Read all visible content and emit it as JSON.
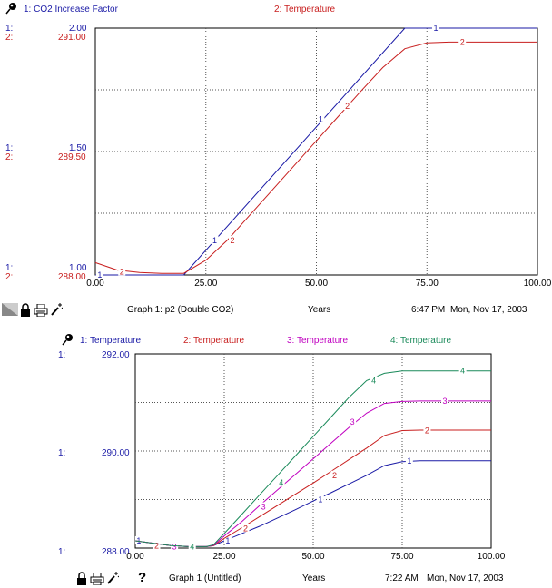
{
  "graph1": {
    "legend": [
      {
        "key": "1",
        "text": "1: CO2 Increase Factor",
        "color": "#1a1aa6"
      },
      {
        "key": "2",
        "text": "2: Temperature",
        "color": "#c81e1e"
      }
    ],
    "axis_rows": {
      "top": {
        "l1": "1:",
        "l2": "2:",
        "v1": "2.00",
        "v2": "291.00"
      },
      "mid": {
        "l1": "1:",
        "l2": "2:",
        "v1": "1.50",
        "v2": "289.50"
      },
      "bot": {
        "l1": "1:",
        "l2": "2:",
        "v1": "1.00",
        "v2": "288.00"
      }
    },
    "footer": {
      "title": "Graph 1: p2 (Double CO2)",
      "xunit": "Years",
      "time": "6:47 PM",
      "date": "Mon, Nov 17, 2003"
    }
  },
  "graph2": {
    "legend": [
      {
        "key": "1",
        "text": "1: Temperature",
        "color": "#1a1aa6"
      },
      {
        "key": "2",
        "text": "2: Temperature",
        "color": "#c81e1e"
      },
      {
        "key": "3",
        "text": "3: Temperature",
        "color": "#c000c0"
      },
      {
        "key": "4",
        "text": "4: Temperature",
        "color": "#1a8a5a"
      }
    ],
    "axis_rows": {
      "top": {
        "l1": "1:",
        "v1": "292.00"
      },
      "mid": {
        "l1": "1:",
        "v1": "290.00"
      },
      "bot": {
        "l1": "1:",
        "v1": "288.00"
      }
    },
    "footer": {
      "title": "Graph 1 (Untitled)",
      "xunit": "Years",
      "time": "7:22 AM",
      "date": "Mon, Nov 17, 2003",
      "help": "?"
    }
  },
  "icons": {
    "pin": "pushpin-icon",
    "lock": "lock-icon",
    "print": "printer-icon",
    "wand": "magic-wand-icon"
  },
  "chart_data": [
    {
      "type": "line",
      "x_ticks": [
        "0.00",
        "25.00",
        "50.00",
        "75.00",
        "100.00"
      ],
      "xlim": [
        0,
        100
      ],
      "series": [
        {
          "name": "CO2 Increase Factor",
          "key": "1",
          "color": "#1a1aa6",
          "axis": "left1",
          "ylim": [
            1.0,
            2.0
          ],
          "x": [
            0,
            20,
            70,
            100
          ],
          "y": [
            1.0,
            1.0,
            2.0,
            2.0
          ],
          "marks": [
            [
              1,
              1.0
            ],
            [
              27,
              1.14
            ],
            [
              51,
              1.63
            ],
            [
              77,
              2.0
            ]
          ]
        },
        {
          "name": "Temperature",
          "key": "2",
          "color": "#c81e1e",
          "axis": "left2",
          "ylim": [
            288.0,
            291.0
          ],
          "x": [
            0,
            5,
            10,
            15,
            20,
            25,
            30,
            35,
            40,
            45,
            50,
            55,
            60,
            65,
            70,
            75,
            80,
            85,
            90,
            95,
            100
          ],
          "y": [
            288.15,
            288.06,
            288.03,
            288.02,
            288.02,
            288.18,
            288.43,
            288.73,
            289.03,
            289.33,
            289.63,
            289.93,
            290.23,
            290.52,
            290.75,
            290.82,
            290.83,
            290.83,
            290.83,
            290.83,
            290.83
          ],
          "marks": [
            [
              6,
              288.04
            ],
            [
              31,
              288.42
            ],
            [
              57,
              290.05
            ],
            [
              83,
              290.83
            ]
          ]
        }
      ]
    },
    {
      "type": "line",
      "x_ticks": [
        "0.00",
        "25.00",
        "50.00",
        "75.00",
        "100.00"
      ],
      "xlim": [
        0,
        100
      ],
      "ylim": [
        288.0,
        292.0
      ],
      "series": [
        {
          "name": "Temperature",
          "key": "1",
          "color": "#1a1aa6",
          "x": [
            0,
            5,
            10,
            15,
            20,
            22,
            25,
            30,
            35,
            40,
            45,
            50,
            55,
            60,
            65,
            70,
            75,
            80,
            85,
            90,
            95,
            100
          ],
          "y": [
            288.15,
            288.1,
            288.05,
            288.03,
            288.03,
            288.05,
            288.15,
            288.3,
            288.45,
            288.62,
            288.79,
            288.97,
            289.14,
            289.32,
            289.5,
            289.7,
            289.78,
            289.8,
            289.8,
            289.8,
            289.8,
            289.8
          ],
          "marks": [
            [
              1,
              288.15
            ],
            [
              26,
              288.15
            ],
            [
              52,
              289.0
            ],
            [
              77,
              289.79
            ]
          ]
        },
        {
          "name": "Temperature",
          "key": "2",
          "color": "#c81e1e",
          "x": [
            0,
            5,
            10,
            15,
            20,
            22,
            25,
            30,
            35,
            40,
            45,
            50,
            55,
            60,
            65,
            70,
            75,
            80,
            85,
            90,
            95,
            100
          ],
          "y": [
            288.15,
            288.1,
            288.05,
            288.03,
            288.03,
            288.05,
            288.2,
            288.42,
            288.65,
            288.88,
            289.11,
            289.34,
            289.58,
            289.82,
            290.06,
            290.32,
            290.42,
            290.43,
            290.43,
            290.43,
            290.43,
            290.43
          ],
          "marks": [
            [
              6,
              288.05
            ],
            [
              31,
              288.4
            ],
            [
              56,
              289.5
            ],
            [
              82,
              290.42
            ]
          ]
        },
        {
          "name": "Temperature",
          "key": "3",
          "color": "#c000c0",
          "x": [
            0,
            5,
            10,
            15,
            20,
            22,
            25,
            30,
            35,
            40,
            45,
            50,
            55,
            60,
            65,
            70,
            75,
            80,
            85,
            90,
            95,
            100
          ],
          "y": [
            288.15,
            288.1,
            288.05,
            288.03,
            288.03,
            288.06,
            288.25,
            288.55,
            288.88,
            289.2,
            289.52,
            289.84,
            290.16,
            290.48,
            290.78,
            290.98,
            291.02,
            291.03,
            291.03,
            291.03,
            291.03,
            291.03
          ],
          "marks": [
            [
              11,
              288.03
            ],
            [
              36,
              288.85
            ],
            [
              61,
              290.6
            ],
            [
              87,
              291.03
            ]
          ]
        },
        {
          "name": "Temperature",
          "key": "4",
          "color": "#1a8a5a",
          "x": [
            0,
            5,
            10,
            15,
            20,
            22,
            25,
            30,
            35,
            40,
            45,
            50,
            55,
            60,
            65,
            70,
            75,
            80,
            85,
            90,
            95,
            100
          ],
          "y": [
            288.15,
            288.1,
            288.05,
            288.03,
            288.03,
            288.07,
            288.3,
            288.7,
            289.1,
            289.5,
            289.9,
            290.3,
            290.7,
            291.1,
            291.45,
            291.6,
            291.65,
            291.65,
            291.65,
            291.65,
            291.65,
            291.65
          ],
          "marks": [
            [
              16,
              288.03
            ],
            [
              41,
              289.35
            ],
            [
              67,
              291.45
            ],
            [
              92,
              291.65
            ]
          ]
        }
      ]
    }
  ]
}
